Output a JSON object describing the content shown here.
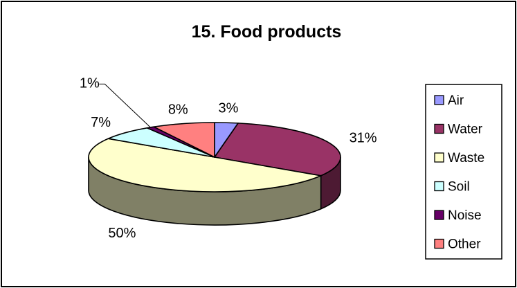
{
  "chart_data": {
    "type": "pie",
    "title": "15. Food products",
    "categories": [
      "Air",
      "Water",
      "Waste",
      "Soil",
      "Noise",
      "Other"
    ],
    "values": [
      3,
      31,
      50,
      7,
      1,
      8
    ],
    "labels": [
      "3%",
      "31%",
      "50%",
      "7%",
      "1%",
      "8%"
    ],
    "colors": [
      "#9999ff",
      "#993366",
      "#ffffcc",
      "#ccffff",
      "#660066",
      "#ff8080"
    ],
    "side_colors": [
      "#4d4d80",
      "#4d1a33",
      "#808066",
      "#668080",
      "#330033",
      "#804040"
    ],
    "legend": "right",
    "three_d": true
  }
}
